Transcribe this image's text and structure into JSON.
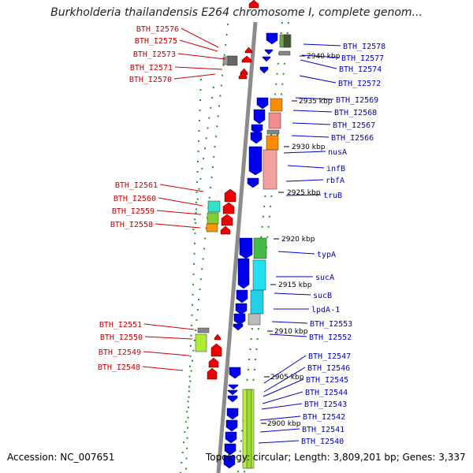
{
  "title": "Burkholderia thailandensis E264 chromosome I, complete genom...",
  "footer": {
    "accession": "Accession: NC_007651",
    "summary": "Topology: circular; Length: 3,809,201 bp; Genes: 3,337"
  },
  "colors": {
    "backbone": "#8c8c8c",
    "left_labels": "#cc0000",
    "right_labels": "#0000cc",
    "grid_dots": "#2e8b2e",
    "gene_reverse": "#ee0000",
    "gene_forward": "#0000ee"
  },
  "scale_labels": [
    "2940 kbp",
    "2935 kbp",
    "2930 kbp",
    "2925 kbp",
    "2920 kbp",
    "2915 kbp",
    "2910 kbp",
    "2905 kbp",
    "2900 kbp"
  ],
  "left_genes": [
    "BTH_I2576",
    "BTH_I2575",
    "BTH_I2573",
    "BTH_I2571",
    "BTH_I2570",
    "BTH_I2561",
    "BTH_I2560",
    "BTH_I2559",
    "BTH_I2558",
    "BTH_I2551",
    "BTH_I2550",
    "BTH_I2549",
    "BTH_I2548"
  ],
  "right_genes": [
    "BTH_I2578",
    "BTH_I2577",
    "BTH_I2574",
    "BTH_I2572",
    "BTH_I2569",
    "BTH_I2568",
    "BTH_I2567",
    "BTH_I2566",
    "nusA",
    "infB",
    "rbfA",
    "truB",
    "typA",
    "sucA",
    "sucB",
    "lpdA-1",
    "BTH_I2553",
    "BTH_I2552",
    "BTH_I2547",
    "BTH_I2546",
    "BTH_I2545",
    "BTH_I2544",
    "BTH_I2543",
    "BTH_I2542",
    "BTH_I2541",
    "BTH_I2540"
  ]
}
